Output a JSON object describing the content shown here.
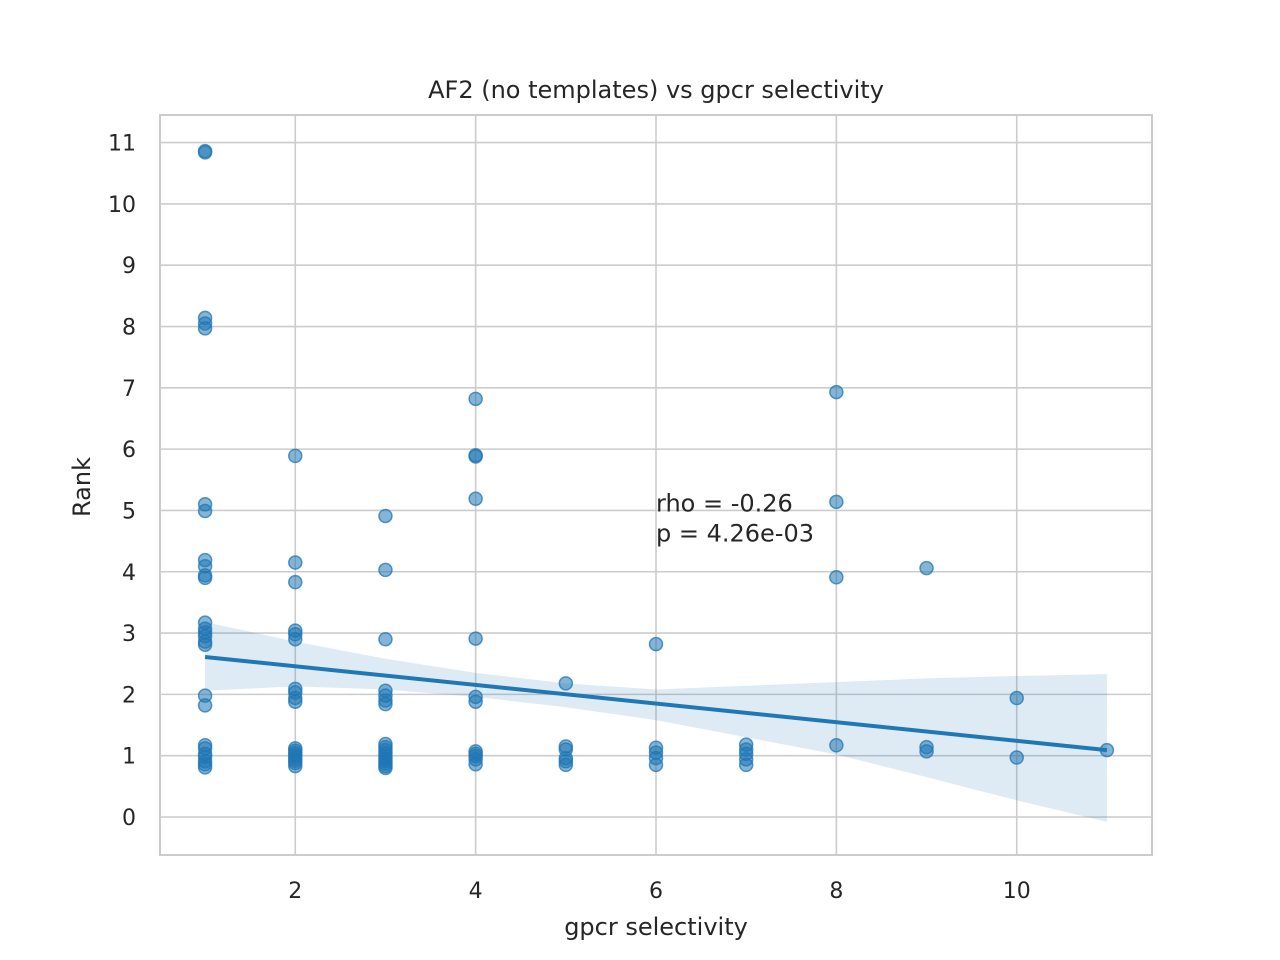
{
  "chart_data": {
    "type": "scatter",
    "title": "AF2 (no templates) vs gpcr selectivity",
    "xlabel": "gpcr selectivity",
    "ylabel": "Rank",
    "xlim": [
      0.5,
      11.5
    ],
    "ylim": [
      -0.62,
      11.45
    ],
    "xticks": [
      2,
      4,
      6,
      8,
      10
    ],
    "yticks": [
      0,
      1,
      2,
      3,
      4,
      5,
      6,
      7,
      8,
      9,
      10,
      11
    ],
    "grid": true,
    "points": [
      [
        1,
        10.86
      ],
      [
        1,
        10.84
      ],
      [
        1,
        8.14
      ],
      [
        1,
        8.05
      ],
      [
        1,
        7.97
      ],
      [
        1,
        5.1
      ],
      [
        1,
        4.99
      ],
      [
        1,
        4.19
      ],
      [
        1,
        4.09
      ],
      [
        1,
        3.94
      ],
      [
        1,
        3.9
      ],
      [
        1,
        3.17
      ],
      [
        1,
        3.07
      ],
      [
        1,
        3.01
      ],
      [
        1,
        2.95
      ],
      [
        1,
        2.86
      ],
      [
        1,
        2.81
      ],
      [
        1,
        1.98
      ],
      [
        1,
        1.82
      ],
      [
        1,
        1.17
      ],
      [
        1,
        1.12
      ],
      [
        1,
        1.03
      ],
      [
        1,
        0.98
      ],
      [
        1,
        0.91
      ],
      [
        1,
        0.86
      ],
      [
        1,
        0.81
      ],
      [
        2,
        5.89
      ],
      [
        2,
        4.15
      ],
      [
        2,
        3.83
      ],
      [
        2,
        3.04
      ],
      [
        2,
        2.98
      ],
      [
        2,
        2.9
      ],
      [
        2,
        2.09
      ],
      [
        2,
        2.03
      ],
      [
        2,
        1.94
      ],
      [
        2,
        1.88
      ],
      [
        2,
        1.12
      ],
      [
        2,
        1.08
      ],
      [
        2,
        1.04
      ],
      [
        2,
        1.0
      ],
      [
        2,
        0.96
      ],
      [
        2,
        0.92
      ],
      [
        2,
        0.88
      ],
      [
        2,
        0.83
      ],
      [
        3,
        4.91
      ],
      [
        3,
        4.03
      ],
      [
        3,
        2.9
      ],
      [
        3,
        2.06
      ],
      [
        3,
        1.98
      ],
      [
        3,
        1.9
      ],
      [
        3,
        1.84
      ],
      [
        3,
        1.19
      ],
      [
        3,
        1.14
      ],
      [
        3,
        1.09
      ],
      [
        3,
        1.04
      ],
      [
        3,
        0.99
      ],
      [
        3,
        0.95
      ],
      [
        3,
        0.91
      ],
      [
        3,
        0.87
      ],
      [
        3,
        0.83
      ],
      [
        3,
        0.8
      ],
      [
        4,
        6.82
      ],
      [
        4,
        5.9
      ],
      [
        4,
        5.88
      ],
      [
        4,
        5.19
      ],
      [
        4,
        2.91
      ],
      [
        4,
        1.96
      ],
      [
        4,
        1.88
      ],
      [
        4,
        1.07
      ],
      [
        4,
        1.03
      ],
      [
        4,
        0.99
      ],
      [
        4,
        0.94
      ],
      [
        4,
        0.86
      ],
      [
        5,
        2.18
      ],
      [
        5,
        1.15
      ],
      [
        5,
        1.1
      ],
      [
        5,
        0.96
      ],
      [
        5,
        0.91
      ],
      [
        5,
        0.85
      ],
      [
        6,
        2.82
      ],
      [
        6,
        1.13
      ],
      [
        6,
        1.05
      ],
      [
        6,
        0.96
      ],
      [
        6,
        0.85
      ],
      [
        7,
        1.18
      ],
      [
        7,
        1.1
      ],
      [
        7,
        1.03
      ],
      [
        7,
        0.94
      ],
      [
        7,
        0.85
      ],
      [
        8,
        6.93
      ],
      [
        8,
        5.14
      ],
      [
        8,
        3.91
      ],
      [
        8,
        1.17
      ],
      [
        9,
        4.06
      ],
      [
        9,
        1.14
      ],
      [
        9,
        1.07
      ],
      [
        10,
        1.94
      ],
      [
        10,
        0.97
      ],
      [
        11,
        1.09
      ]
    ],
    "regression": {
      "x": [
        1,
        11
      ],
      "y": [
        2.61,
        1.09
      ]
    },
    "ci_band": {
      "x": [
        1,
        2,
        3,
        4,
        5,
        6,
        7,
        8,
        9,
        10,
        11
      ],
      "upper": [
        3.18,
        2.86,
        2.58,
        2.35,
        2.18,
        2.08,
        2.14,
        2.2,
        2.26,
        2.3,
        2.33
      ],
      "lower": [
        2.06,
        2.13,
        2.08,
        1.96,
        1.79,
        1.58,
        1.3,
        1.02,
        0.65,
        0.27,
        -0.08
      ]
    },
    "annotations": [
      "rho = -0.26",
      "p = 4.26e-03"
    ],
    "annotation_anchor": [
      6.0,
      4.62
    ],
    "color": "#1f77b4"
  }
}
